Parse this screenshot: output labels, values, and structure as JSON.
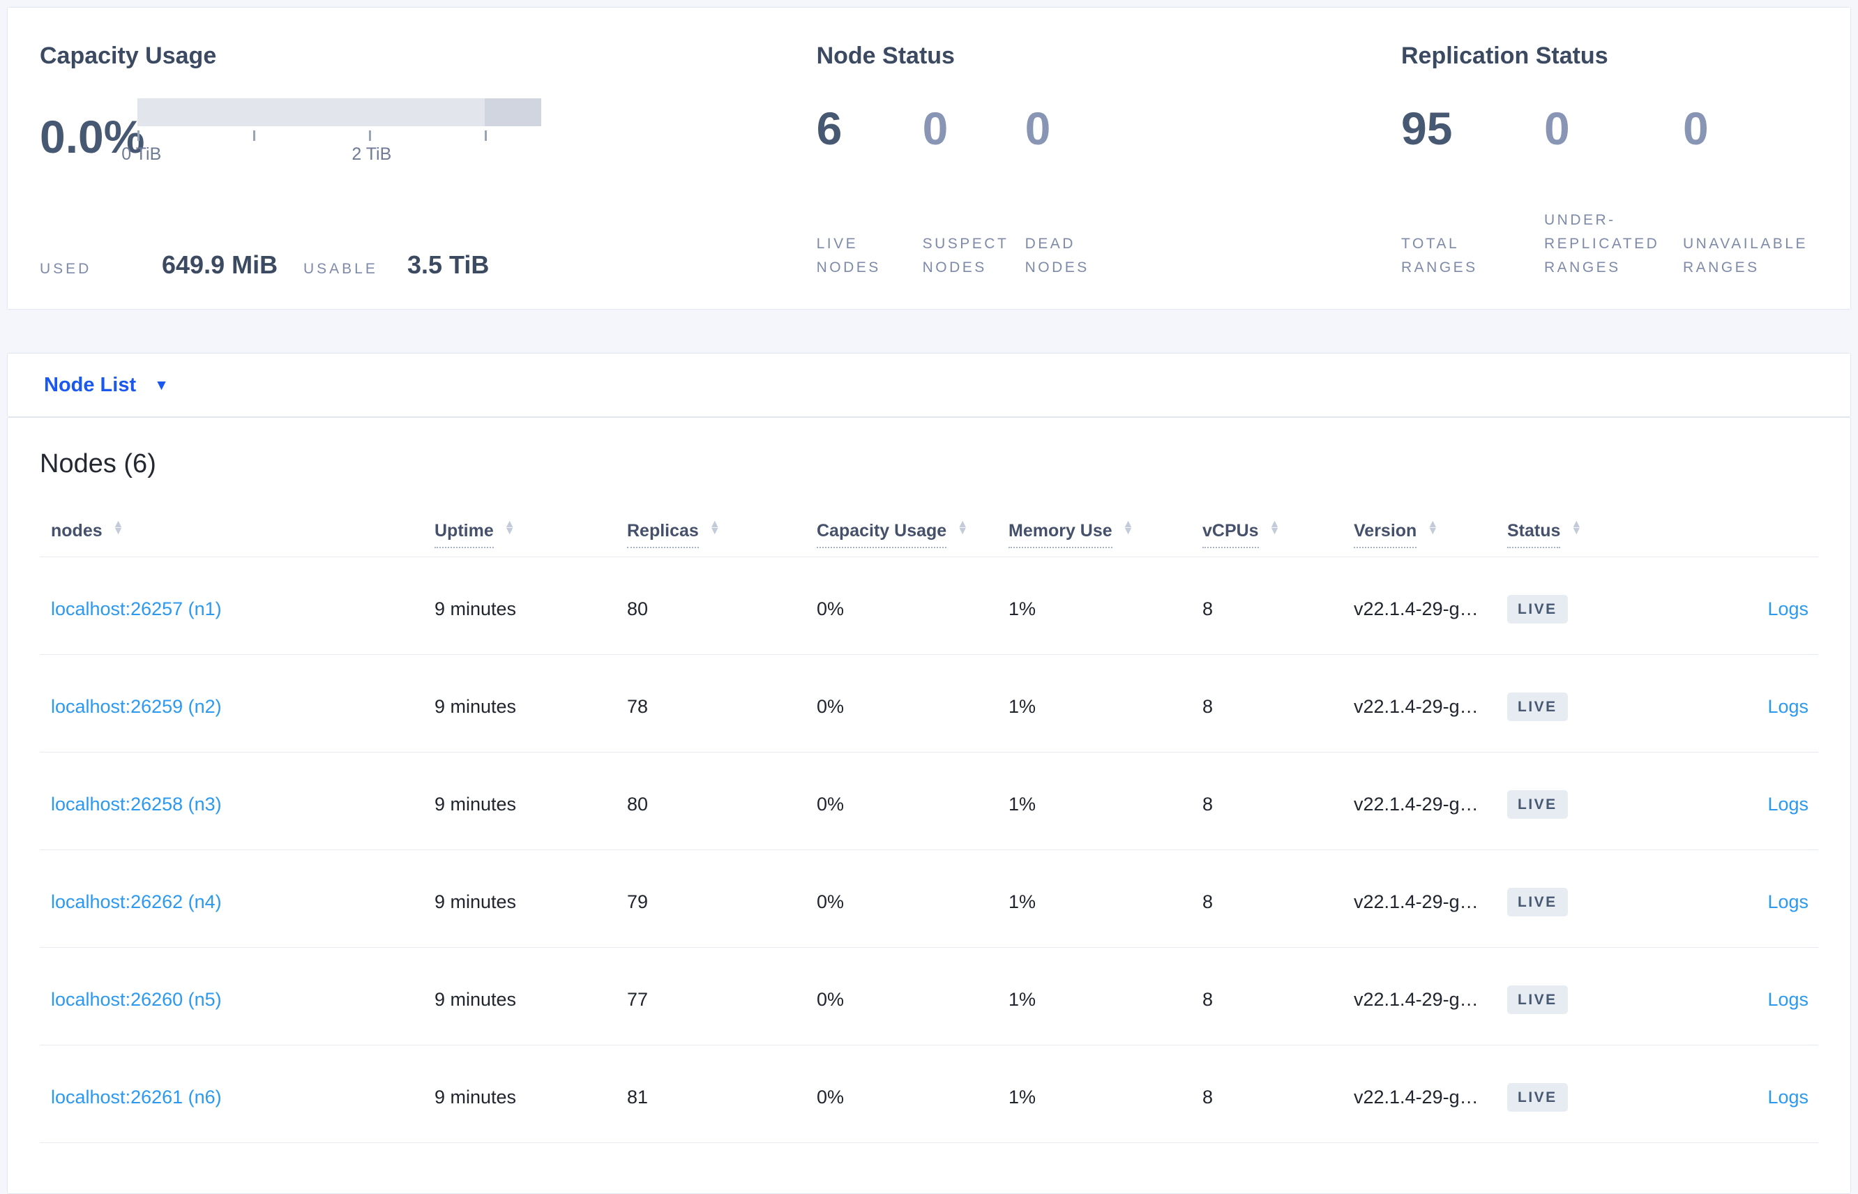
{
  "summary": {
    "capacity": {
      "title": "Capacity Usage",
      "percent": "0.0%",
      "tick_labels": [
        "0 TiB",
        "2 TiB"
      ],
      "used_label": "USED",
      "used_value": "649.9 MiB",
      "usable_label": "USABLE",
      "usable_value": "3.5 TiB"
    },
    "node_status": {
      "title": "Node Status",
      "stats": [
        {
          "value": "6",
          "label": "LIVE\nNODES"
        },
        {
          "value": "0",
          "label": "SUSPECT\nNODES"
        },
        {
          "value": "0",
          "label": "DEAD\nNODES"
        }
      ]
    },
    "replication": {
      "title": "Replication Status",
      "stats": [
        {
          "value": "95",
          "label": "TOTAL\nRANGES"
        },
        {
          "value": "0",
          "label": "UNDER-\nREPLICATED\nRANGES"
        },
        {
          "value": "0",
          "label": "UNAVAILABLE\nRANGES"
        }
      ]
    }
  },
  "node_list": {
    "label": "Node List",
    "caret": "▼"
  },
  "table": {
    "title": "Nodes (6)",
    "columns": [
      "nodes",
      "Uptime",
      "Replicas",
      "Capacity Usage",
      "Memory Use",
      "vCPUs",
      "Version",
      "Status"
    ],
    "rows": [
      {
        "node": "localhost:26257 (n1)",
        "uptime": "9 minutes",
        "replicas": "80",
        "capacity": "0%",
        "memory": "1%",
        "vcpus": "8",
        "version": "v22.1.4-29-g…",
        "status": "LIVE",
        "logs": "Logs"
      },
      {
        "node": "localhost:26259 (n2)",
        "uptime": "9 minutes",
        "replicas": "78",
        "capacity": "0%",
        "memory": "1%",
        "vcpus": "8",
        "version": "v22.1.4-29-g…",
        "status": "LIVE",
        "logs": "Logs"
      },
      {
        "node": "localhost:26258 (n3)",
        "uptime": "9 minutes",
        "replicas": "80",
        "capacity": "0%",
        "memory": "1%",
        "vcpus": "8",
        "version": "v22.1.4-29-g…",
        "status": "LIVE",
        "logs": "Logs"
      },
      {
        "node": "localhost:26262 (n4)",
        "uptime": "9 minutes",
        "replicas": "79",
        "capacity": "0%",
        "memory": "1%",
        "vcpus": "8",
        "version": "v22.1.4-29-g…",
        "status": "LIVE",
        "logs": "Logs"
      },
      {
        "node": "localhost:26260 (n5)",
        "uptime": "9 minutes",
        "replicas": "77",
        "capacity": "0%",
        "memory": "1%",
        "vcpus": "8",
        "version": "v22.1.4-29-g…",
        "status": "LIVE",
        "logs": "Logs"
      },
      {
        "node": "localhost:26261 (n6)",
        "uptime": "9 minutes",
        "replicas": "81",
        "capacity": "0%",
        "memory": "1%",
        "vcpus": "8",
        "version": "v22.1.4-29-g…",
        "status": "LIVE",
        "logs": "Logs"
      }
    ]
  },
  "colors": {
    "accent_blue": "#1b58f0",
    "link_blue": "#2b99f0",
    "stat_dark": "#475872",
    "stat_muted": "#8995b4",
    "badge_bg": "#e7ebf2"
  }
}
